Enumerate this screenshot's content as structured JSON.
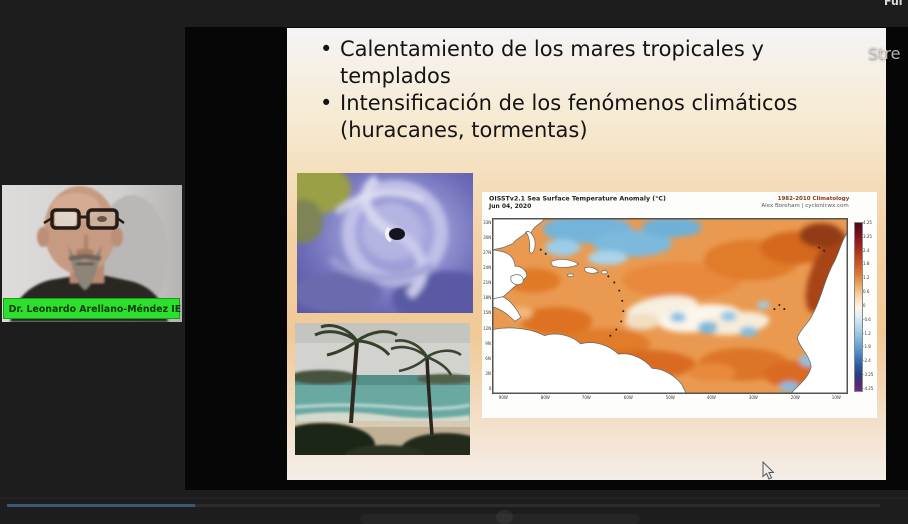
{
  "app": {
    "watermark_partial": "Stre",
    "top_edge_partial": "Ful"
  },
  "participant": {
    "name_label": "Dr. Leonardo Arellano-Méndez IE..."
  },
  "slide": {
    "bullets": [
      "Calentamiento de los mares tropicales y templados",
      "Intensificación de los fenómenos climáticos (huracanes, tormentas)"
    ]
  },
  "chart_data": {
    "type": "heatmap",
    "title": "OISSTv2.1 Sea Surface Temperature Anomaly (°C)",
    "date": "Jun 04, 2020",
    "climatology": "1982-2010 Climatology",
    "credit": "Alex Boreham | cyclonicwx.com",
    "colorbar_unit": "°C",
    "colorbar_ticks": [
      "4.25",
      "3.25",
      "2.4",
      "1.8",
      "1.2",
      "0.6",
      "0",
      "-0.6",
      "-1.2",
      "-1.8",
      "-2.4",
      "-3.25",
      "-4.25"
    ],
    "lat_ticks": [
      "33N",
      "30N",
      "27N",
      "24N",
      "21N",
      "18N",
      "15N",
      "12N",
      "9N",
      "6N",
      "3N",
      "0"
    ],
    "lon_ticks": [
      "90W",
      "80W",
      "70W",
      "60W",
      "50W",
      "40W",
      "30W",
      "20W",
      "10W"
    ],
    "summary": "Tropical/subtropical North Atlantic: widespread warm anomalies of +0.5 to +2 C (orange) across the basin, strongest +2 to +4 C along the northwest African coast; cool anomalies of -0.5 to -1.5 C (blue) in the central subtropics near 30N and scattered small cool patches near 10-15N; near-neutral (white) band across the central tropical Atlantic."
  }
}
